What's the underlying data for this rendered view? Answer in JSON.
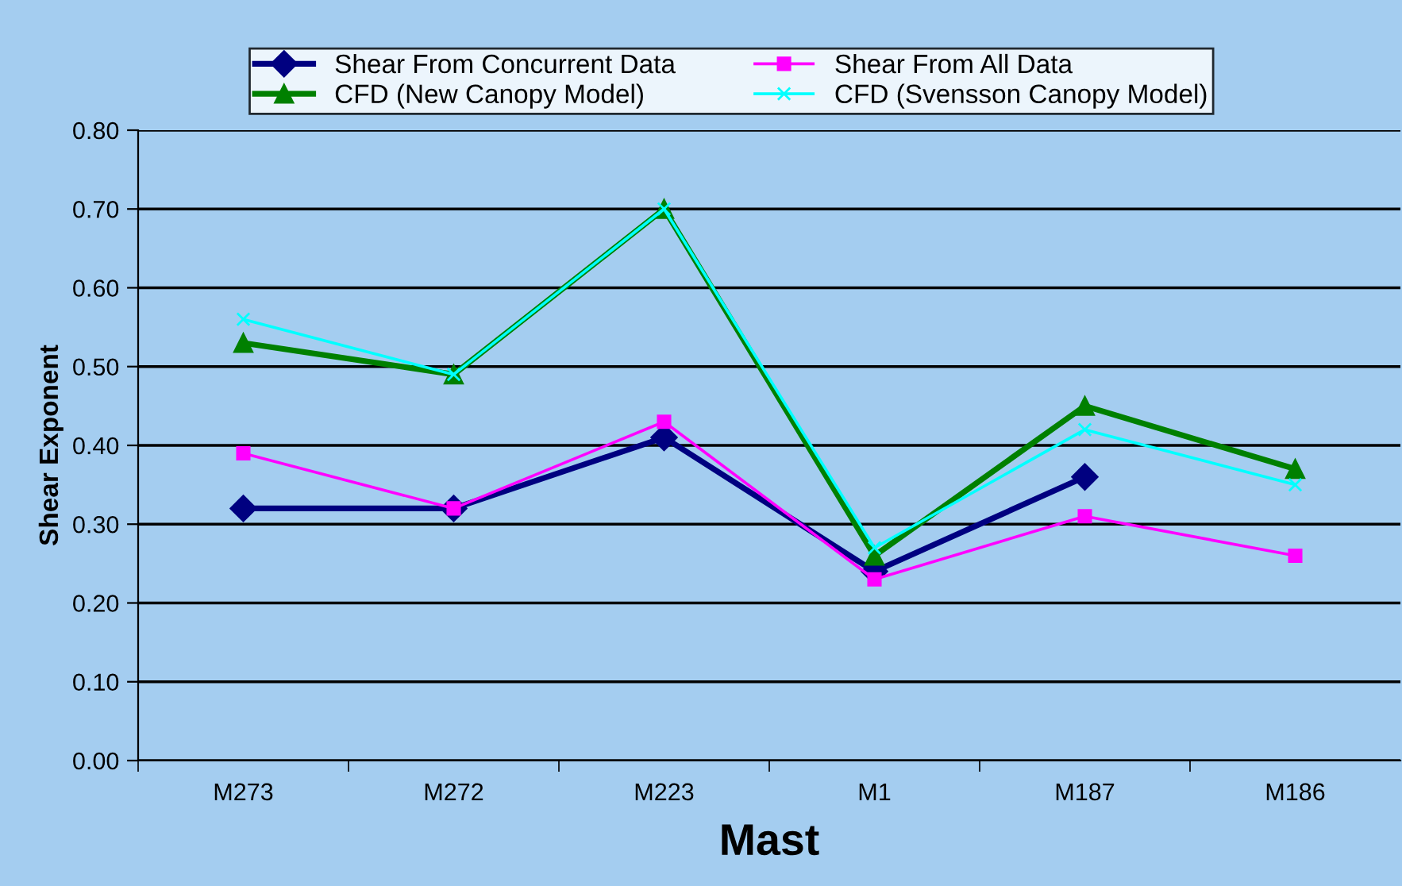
{
  "chart_data": {
    "type": "line",
    "xlabel": "Mast",
    "ylabel": "Shear Exponent",
    "categories": [
      "M273",
      "M272",
      "M223",
      "M1",
      "M187",
      "M186"
    ],
    "series": [
      {
        "name": "Shear From Concurrent Data",
        "color": "#000080",
        "marker": "diamond",
        "values": [
          0.32,
          0.32,
          0.41,
          0.24,
          0.36,
          null
        ]
      },
      {
        "name": "Shear From All Data",
        "color": "#ff00ff",
        "marker": "square",
        "values": [
          0.39,
          0.32,
          0.43,
          0.23,
          0.31,
          0.26
        ]
      },
      {
        "name": "CFD (New Canopy Model)",
        "color": "#008000",
        "marker": "triangle",
        "values": [
          0.53,
          0.49,
          0.7,
          0.26,
          0.45,
          0.37
        ]
      },
      {
        "name": "CFD (Svensson Canopy Model)",
        "color": "#00ffff",
        "marker": "cross",
        "values": [
          0.56,
          0.49,
          0.7,
          0.27,
          0.42,
          0.35
        ]
      }
    ],
    "ylim": [
      0,
      0.8
    ],
    "yticks": [
      {
        "value": 0,
        "label": "0.00"
      },
      {
        "value": 0.1,
        "label": "0.10"
      },
      {
        "value": 0.2,
        "label": "0.20"
      },
      {
        "value": 0.3,
        "label": "0.30"
      },
      {
        "value": 0.4,
        "label": "0.40"
      },
      {
        "value": 0.5,
        "label": "0.50"
      },
      {
        "value": 0.6,
        "label": "0.60"
      },
      {
        "value": 0.7,
        "label": "0.70"
      },
      {
        "value": 0.8,
        "label": "0.80"
      }
    ],
    "grid": "y",
    "legend": "top"
  }
}
